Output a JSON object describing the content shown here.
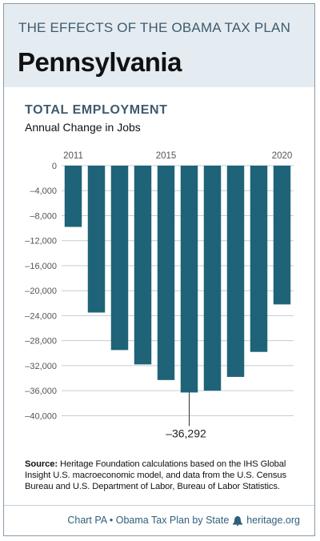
{
  "header": {
    "kicker": "THE EFFECTS OF THE OBAMA TAX PLAN",
    "state": "Pennsylvania"
  },
  "chart_data": {
    "type": "bar",
    "title": "TOTAL EMPLOYMENT",
    "subtitle": "Annual Change in Jobs",
    "categories": [
      "2011",
      "2012",
      "2013",
      "2014",
      "2015",
      "2016",
      "2017",
      "2018",
      "2019",
      "2020"
    ],
    "x_tick_labels": [
      {
        "index": 0,
        "label": "2011"
      },
      {
        "index": 4,
        "label": "2015"
      },
      {
        "index": 9,
        "label": "2020"
      }
    ],
    "values": [
      -9800,
      -23500,
      -29500,
      -31800,
      -34300,
      -36292,
      -36000,
      -33800,
      -29800,
      -22200
    ],
    "ylim": [
      -42000,
      0
    ],
    "yticks": [
      0,
      -4000,
      -8000,
      -12000,
      -16000,
      -20000,
      -24000,
      -28000,
      -32000,
      -36000,
      -40000
    ],
    "ytick_labels": [
      "0",
      "–4,000",
      "–8,000",
      "–12,000",
      "–16,000",
      "–20,000",
      "–24,000",
      "–28,000",
      "–32,000",
      "–36,000",
      "–40,000"
    ],
    "annotation": {
      "index": 5,
      "label": "–36,292"
    },
    "grid": true,
    "bar_color": "#1f6378"
  },
  "source": {
    "label": "Source:",
    "text": "Heritage Foundation calculations based on the IHS Global Insight U.S. macroeconomic model, and data from the U.S. Census Bureau and U.S. Department of Labor, Bureau of Labor Statistics."
  },
  "footer": {
    "credit": "Chart PA • Obama Tax Plan by State",
    "site": "heritage.org",
    "logo_icon": "liberty-bell-icon"
  }
}
